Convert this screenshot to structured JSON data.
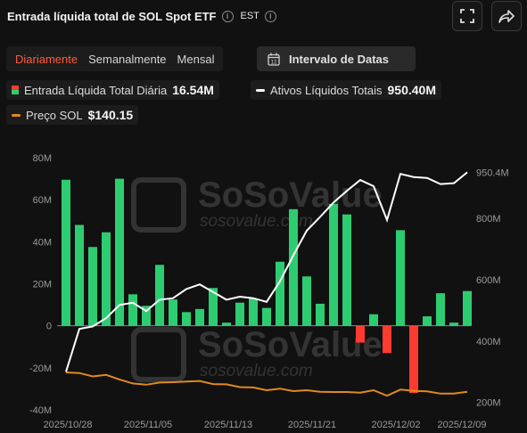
{
  "header": {
    "title": "Entrada líquida total de SOL Spot ETF",
    "timezone": "EST"
  },
  "tabs": [
    {
      "label": "Diariamente",
      "active": true
    },
    {
      "label": "Semanalmente",
      "active": false
    },
    {
      "label": "Mensal",
      "active": false
    }
  ],
  "date_range_button": {
    "label": "Intervalo de Datas"
  },
  "legend": {
    "daily_inflow": {
      "label": "Entrada Líquida Total Diária",
      "value": "16.54M"
    },
    "net_assets": {
      "label": "Ativos Líquidos Totais",
      "value": "950.40M",
      "color": "#ffffff"
    },
    "sol_price": {
      "label": "Preço SOL",
      "value": "$140.15",
      "color": "#e08a1e"
    }
  },
  "watermark": {
    "brand": "SoSoValue",
    "url": "sosovalue.com"
  },
  "chart_data": {
    "type": "bar",
    "x_tick_labels": [
      "2025/10/28",
      "2025/11/05",
      "2025/11/13",
      "2025/11/21",
      "2025/12/02",
      "2025/12/09"
    ],
    "left_axis": {
      "ticks": [
        "80M",
        "60M",
        "40M",
        "20M",
        "0",
        "-20M",
        "-40M"
      ],
      "ylim": [
        -40,
        80
      ],
      "unit": "M"
    },
    "right_axis": {
      "ticks": [
        "950.4M",
        "800M",
        "600M",
        "400M",
        "200M"
      ],
      "ylim": [
        176,
        998
      ]
    },
    "colors": {
      "positive": "#2ecc71",
      "negative": "#ff3b30"
    },
    "series": [
      {
        "name": "Entrada Líquida Total Diária",
        "values": [
          69.5,
          48,
          37.5,
          44.5,
          70,
          15,
          9.5,
          29,
          12.5,
          6.5,
          8,
          18,
          1.5,
          11,
          13,
          8.5,
          30.5,
          55.5,
          23.5,
          10.5,
          58,
          53,
          -8,
          5.5,
          -13,
          45.5,
          -32,
          4.5,
          15.5,
          1.5,
          16.54
        ]
      },
      {
        "name": "Ativos Líquidos Totais",
        "values": [
          300,
          440,
          448,
          475,
          518,
          525,
          498,
          535,
          540,
          570,
          585,
          560,
          535,
          545,
          540,
          528,
          595,
          680,
          760,
          805,
          852,
          890,
          925,
          905,
          795,
          945,
          935,
          932,
          912,
          915,
          950.4
        ]
      },
      {
        "name": "Preço SOL",
        "values": [
          298,
          296,
          285,
          290,
          275,
          262,
          258,
          265,
          266,
          268,
          270,
          260,
          259,
          250,
          249,
          240,
          245,
          237,
          240,
          235,
          234,
          234,
          232,
          240,
          222,
          242,
          238,
          236,
          229,
          229,
          235
        ]
      }
    ]
  }
}
